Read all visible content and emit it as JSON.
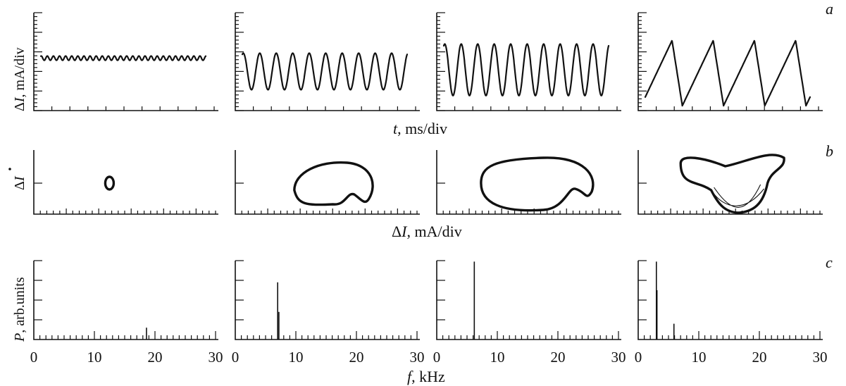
{
  "figure": {
    "row_letters": [
      "a",
      "b",
      "c"
    ],
    "row_a": {
      "ylabel_delta": "Δ",
      "ylabel_var": "I",
      "ylabel_rest": ", mA/div",
      "xlabel_var": "t",
      "xlabel_rest": ", ms/div"
    },
    "row_b": {
      "ylabel_delta": "Δ",
      "ylabel_var": "I",
      "xlabel_delta": "Δ",
      "xlabel_var": "I",
      "xlabel_rest": ", mA/div"
    },
    "row_c": {
      "ylabel_var": "P",
      "ylabel_rest": ", arb.units",
      "xlabel_var": "f",
      "xlabel_rest": ", kHz"
    }
  },
  "chart_data": [
    {
      "type": "line",
      "row": "a",
      "panel": 1,
      "description_of_signal": "small fast oscillation",
      "series": [
        {
          "amplitude_div": 0.13,
          "cycles": 27,
          "mean_div": 2.05,
          "shape": "sine"
        }
      ],
      "xlim": [
        0,
        10
      ],
      "ylim": [
        0,
        5
      ]
    },
    {
      "type": "line",
      "row": "a",
      "panel": 2,
      "series": [
        {
          "amplitude_div": 1.1,
          "cycles": 10,
          "mean_div": 1.25,
          "shape": "sine"
        }
      ],
      "xlim": [
        0,
        10
      ],
      "ylim": [
        0,
        5
      ]
    },
    {
      "type": "line",
      "row": "a",
      "panel": 3,
      "series": [
        {
          "amplitude_div": 1.55,
          "cycles": 10,
          "mean_div": 1.35,
          "shape": "sine"
        }
      ],
      "xlim": [
        0,
        10
      ],
      "ylim": [
        0,
        5
      ]
    },
    {
      "type": "line",
      "row": "a",
      "panel": 4,
      "series": [
        {
          "amplitude_div": 2.0,
          "cycles": 4,
          "mean_div": 1.15,
          "shape": "relaxation"
        }
      ],
      "xlim": [
        0,
        10
      ],
      "ylim": [
        0,
        5
      ]
    },
    {
      "type": "scatter",
      "row": "b",
      "panel": 1,
      "series": [
        {
          "shape": "small closed loop",
          "center_x_div": 4.1,
          "width_div": 0.5
        }
      ]
    },
    {
      "type": "scatter",
      "row": "b",
      "panel": 2,
      "series": [
        {
          "shape": "closed loop with dent",
          "center_x_div": 5.3,
          "width_div": 4.2
        }
      ]
    },
    {
      "type": "scatter",
      "row": "b",
      "panel": 3,
      "series": [
        {
          "shape": "large closed loop with dent",
          "center_x_div": 5.4,
          "width_div": 6.0
        }
      ]
    },
    {
      "type": "scatter",
      "row": "b",
      "panel": 4,
      "series": [
        {
          "shape": "complex multi-lobe loop",
          "center_x_div": 5.1,
          "width_div": 5.6
        }
      ]
    },
    {
      "type": "bar",
      "row": "c",
      "panel": 1,
      "x": [
        18.6
      ],
      "values": [
        0.6
      ],
      "xlim": [
        0,
        30
      ],
      "ylim": [
        0,
        4
      ],
      "xticklabels": [
        "0",
        "10",
        "20",
        "30"
      ]
    },
    {
      "type": "bar",
      "row": "c",
      "panel": 2,
      "x": [
        7.0,
        7.2
      ],
      "values": [
        2.9,
        1.4
      ],
      "xlim": [
        0,
        30
      ],
      "ylim": [
        0,
        4
      ],
      "xticklabels": [
        "0",
        "10",
        "20",
        "30"
      ]
    },
    {
      "type": "bar",
      "row": "c",
      "panel": 3,
      "x": [
        6.2
      ],
      "values": [
        3.95
      ],
      "xlim": [
        0,
        30
      ],
      "ylim": [
        0,
        4
      ],
      "xticklabels": [
        "0",
        "10",
        "20",
        "30"
      ]
    },
    {
      "type": "bar",
      "row": "c",
      "panel": 4,
      "x": [
        3.0,
        3.1,
        5.9
      ],
      "values": [
        3.95,
        2.5,
        0.8
      ],
      "xlim": [
        0,
        30
      ],
      "ylim": [
        0,
        4
      ],
      "xticklabels": [
        "0",
        "10",
        "20",
        "30"
      ]
    }
  ]
}
